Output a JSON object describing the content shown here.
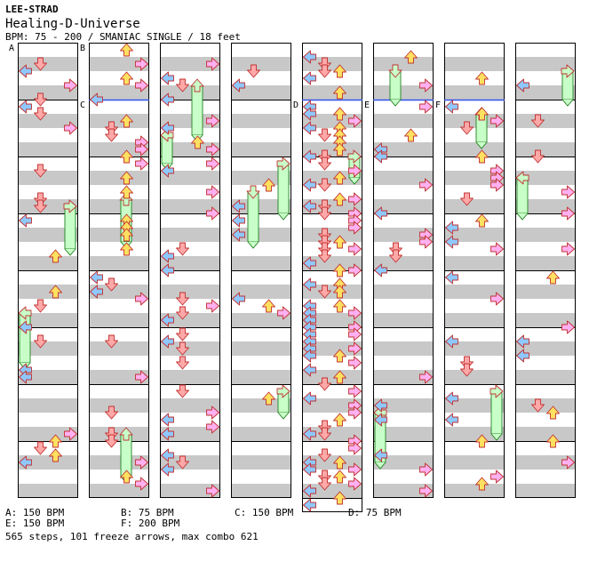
{
  "header": {
    "artist": "LEE-STRAD",
    "song": "Healing-D-Universe",
    "info": "BPM: 75 - 200 / SMANIAC SINGLE / 18 feet"
  },
  "section_markers": [
    {
      "label": "A",
      "col": 0,
      "row": 0
    },
    {
      "label": "B",
      "col": 1,
      "row": 0
    },
    {
      "label": "C",
      "col": 1,
      "row": 1
    },
    {
      "label": "D",
      "col": 4,
      "row": 1
    },
    {
      "label": "E",
      "col": 5,
      "row": 1
    },
    {
      "label": "F",
      "col": 6,
      "row": 1
    }
  ],
  "legend": [
    {
      "text": "A: 150 BPM"
    },
    {
      "text": "B: 75 BPM"
    },
    {
      "text": "C: 150 BPM"
    },
    {
      "text": "D: 75 BPM"
    },
    {
      "text": "E: 150 BPM"
    },
    {
      "text": "F: 200 BPM"
    }
  ],
  "footer": "565 steps, 101 freeze arrows, max combo 621",
  "colors": {
    "left_arrow": "#8ec8ff",
    "down_arrow": "#ffa8a8",
    "up_arrow": "#ffe060",
    "right_arrow": "#ffb0f0",
    "freeze": "#c8ffc8",
    "stripe": "#c8c8c8",
    "section_line": "#3355ee"
  }
}
